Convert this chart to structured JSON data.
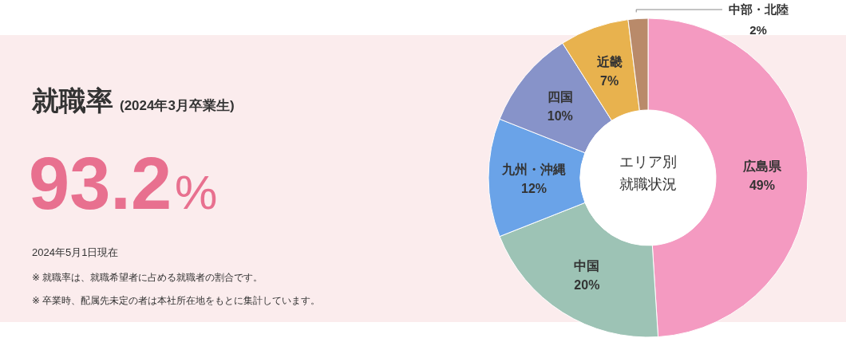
{
  "chart_data": [
    {
      "type": "other",
      "title": "就職率",
      "subtitle": "(2024年3月卒業生)",
      "annotations": [
        "93.2%",
        "2024年5月1日現在",
        "※ 就職率は、就職希望者に占める就職者の割合です。",
        "※ 卒業時、配属先未定の者は本社所在地をもとに集計しています。"
      ]
    },
    {
      "type": "donut",
      "annotations": [
        "エリア別",
        "就職状況"
      ],
      "categories": [
        "広島県",
        "中国",
        "九州・沖縄",
        "四国",
        "近畿",
        "中部・北陸"
      ],
      "values": [
        49,
        20,
        12,
        10,
        7,
        2
      ],
      "colors": [
        "#f49ac1",
        "#9dc3b5",
        "#6aa3e8",
        "#8793c9",
        "#e8b24e",
        "#b98a6a"
      ],
      "value_labels": [
        "49%",
        "20%",
        "12%",
        "10%",
        "7%",
        "2%"
      ]
    }
  ]
}
